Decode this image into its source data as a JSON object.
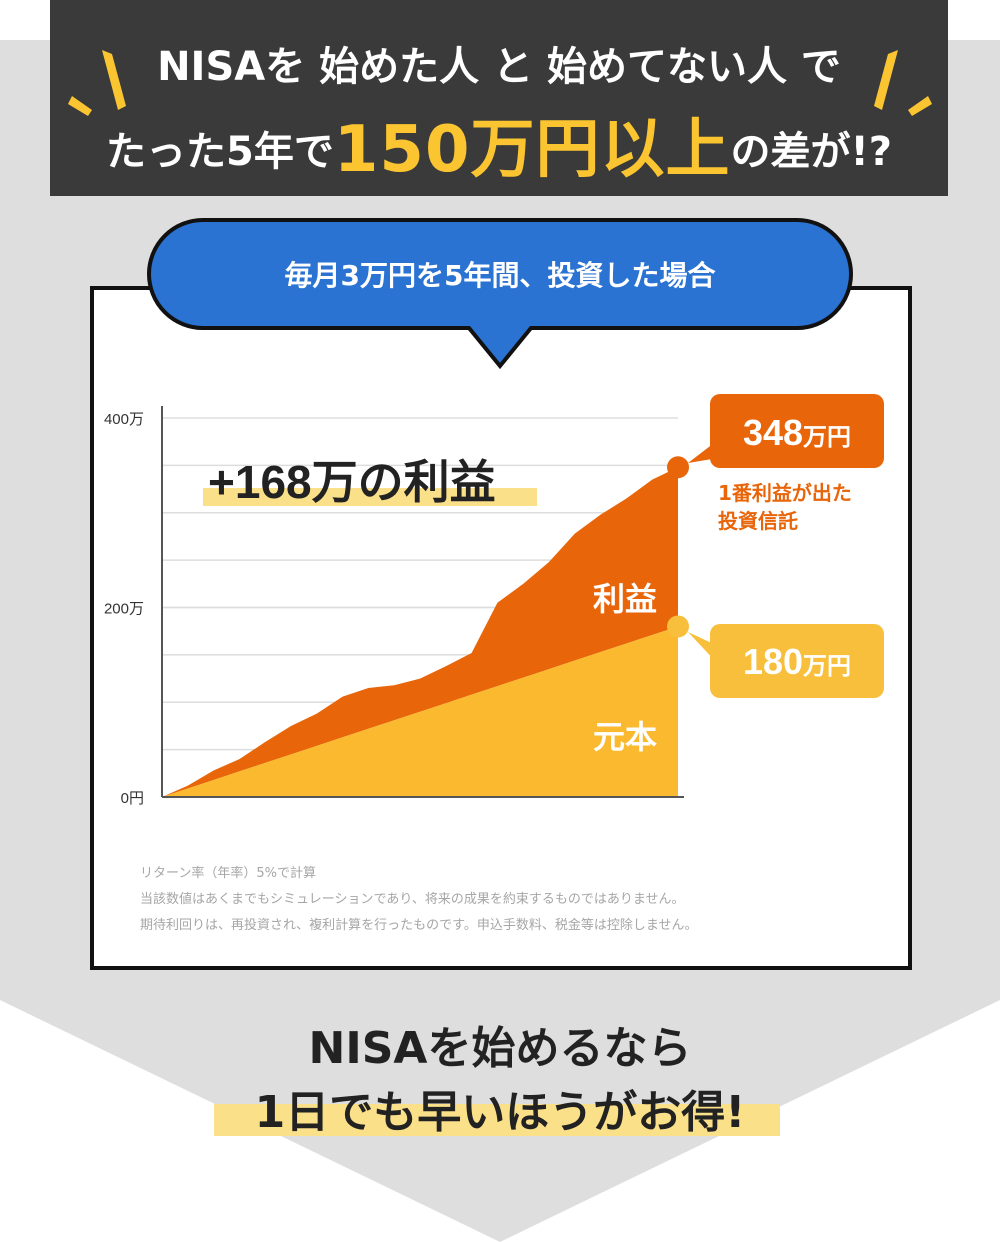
{
  "header": {
    "line1": "NISAを 始めた人 と 始めてない人 で",
    "line2_pre": "たった5年で",
    "line2_highlight": "150万円以上",
    "line2_post": "の差が!?"
  },
  "bubble_title": "毎月3万円を5年間、投資した場合",
  "notes": [
    "リターン率（年率）5%で計算",
    "当該数値はあくまでもシミュレーションであり、将来の成果を約束するものではありません。",
    "期待利回りは、再投資され、複利計算を行ったものです。申込手数料、税金等は控除しません。"
  ],
  "footer": {
    "line1": "NISAを始めるなら",
    "line2": "1日でも早いほうがお得!"
  },
  "colors": {
    "header_bg": "#3a3a3a",
    "highlight_yellow": "#fbc531",
    "bubble_blue": "#2a73d2",
    "profit_orange": "#e8650a",
    "principal_yellow": "#fbb92f",
    "label_box_yellow": "#f7bf3c",
    "arrow_gray": "#dedede",
    "marker_yellow": "#fbe08a"
  },
  "chart_data": {
    "type": "area",
    "title": "毎月3万円を5年間、投資した場合",
    "xlabel": "",
    "ylabel": "",
    "ylim": [
      0,
      400
    ],
    "y_unit": "万円",
    "yticks": [
      "0円",
      "200万",
      "400万"
    ],
    "grid": true,
    "x_months": [
      0,
      3,
      6,
      9,
      12,
      15,
      18,
      21,
      24,
      27,
      30,
      33,
      36,
      39,
      42,
      45,
      48,
      51,
      54,
      57,
      60
    ],
    "series": [
      {
        "name": "元本",
        "values": [
          0,
          9,
          18,
          27,
          36,
          45,
          54,
          63,
          72,
          81,
          90,
          99,
          108,
          117,
          126,
          135,
          144,
          153,
          162,
          171,
          180
        ]
      },
      {
        "name": "利益",
        "values": [
          0,
          12,
          28,
          40,
          58,
          75,
          88,
          106,
          115,
          118,
          125,
          138,
          152,
          205,
          225,
          248,
          278,
          298,
          315,
          335,
          348
        ]
      }
    ],
    "annotations": {
      "profit_total": "+168万の利益",
      "profit_area_label": "利益",
      "principal_area_label": "元本",
      "callout_top_value": "348",
      "callout_top_unit": "万円",
      "callout_top_caption": [
        "1番利益が出た",
        "投資信託"
      ],
      "callout_bottom_value": "180",
      "callout_bottom_unit": "万円"
    }
  }
}
